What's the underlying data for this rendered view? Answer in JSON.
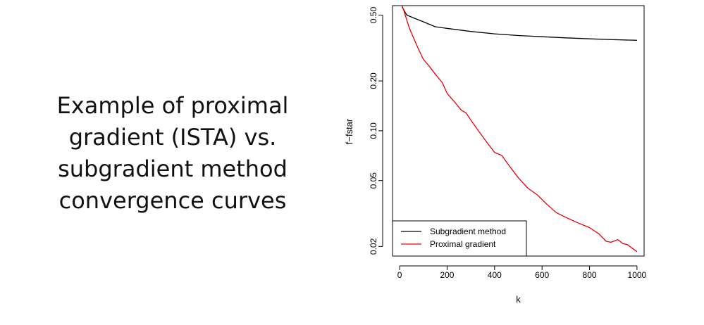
{
  "slide": {
    "text_lines": [
      "Example of proximal",
      "gradient (ISTA) vs.",
      "subgradient method",
      "convergence curves"
    ]
  },
  "chart_data": {
    "type": "line",
    "title": "",
    "xlabel": "k",
    "ylabel": "f−fstar",
    "y_scale": "log",
    "xlim": [
      -30,
      1030
    ],
    "ylim": [
      0.0175,
      0.57
    ],
    "x_ticks": [
      0,
      200,
      400,
      600,
      800,
      1000
    ],
    "x_tick_labels": [
      "0",
      "200",
      "400",
      "600",
      "800",
      "1000"
    ],
    "y_ticks": [
      0.02,
      0.05,
      0.1,
      0.2,
      0.5
    ],
    "y_tick_labels": [
      "0.02",
      "0.05",
      "0.10",
      "0.20",
      "0.50"
    ],
    "grid": false,
    "legend_position": "bottom-left",
    "series": [
      {
        "name": "Subgradient method",
        "color": "#000000",
        "x": [
          10,
          30,
          60,
          100,
          150,
          200,
          300,
          400,
          500,
          600,
          700,
          800,
          900,
          1000
        ],
        "y": [
          0.56,
          0.5,
          0.48,
          0.455,
          0.425,
          0.415,
          0.398,
          0.385,
          0.376,
          0.37,
          0.364,
          0.359,
          0.355,
          0.352
        ]
      },
      {
        "name": "Proximal gradient",
        "color": "#e8000b",
        "x": [
          10,
          20,
          40,
          60,
          80,
          100,
          120,
          150,
          180,
          200,
          230,
          260,
          280,
          300,
          330,
          360,
          400,
          430,
          460,
          500,
          540,
          580,
          620,
          660,
          700,
          750,
          800,
          840,
          870,
          890,
          920,
          940,
          960,
          1000
        ],
        "y": [
          0.57,
          0.52,
          0.42,
          0.36,
          0.31,
          0.27,
          0.25,
          0.22,
          0.195,
          0.168,
          0.15,
          0.133,
          0.128,
          0.116,
          0.101,
          0.088,
          0.074,
          0.071,
          0.062,
          0.052,
          0.045,
          0.041,
          0.036,
          0.032,
          0.03,
          0.0278,
          0.026,
          0.0238,
          0.0215,
          0.0212,
          0.022,
          0.0208,
          0.0205,
          0.0186
        ]
      }
    ]
  }
}
